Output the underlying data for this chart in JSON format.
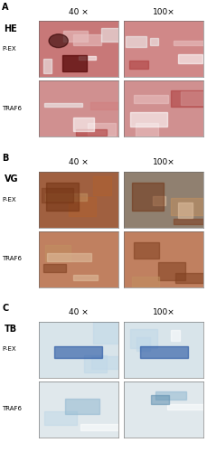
{
  "fig_width": 2.3,
  "fig_height": 5.0,
  "dpi": 100,
  "background": "#ffffff",
  "panels": [
    {
      "label": "A",
      "stain": "HE",
      "rows": [
        "P-EX",
        "TRAF6"
      ],
      "magnifications": [
        "40 ×",
        "100×"
      ],
      "img_colors": [
        [
          "#c87878",
          "#d08888"
        ],
        [
          "#d09090",
          "#d09090"
        ]
      ]
    },
    {
      "label": "B",
      "stain": "VG",
      "rows": [
        "P-EX",
        "TRAF6"
      ],
      "magnifications": [
        "40 ×",
        "100×"
      ],
      "img_colors": [
        [
          "#a06040",
          "#908070"
        ],
        [
          "#c08060",
          "#c08060"
        ]
      ]
    },
    {
      "label": "C",
      "stain": "TB",
      "rows": [
        "P-EX",
        "TRAF6"
      ],
      "magnifications": [
        "40 ×",
        "100×"
      ],
      "img_colors": [
        [
          "#d8e4ea",
          "#d8e4ea"
        ],
        [
          "#e0e8ec",
          "#e0e8ec"
        ]
      ]
    }
  ]
}
